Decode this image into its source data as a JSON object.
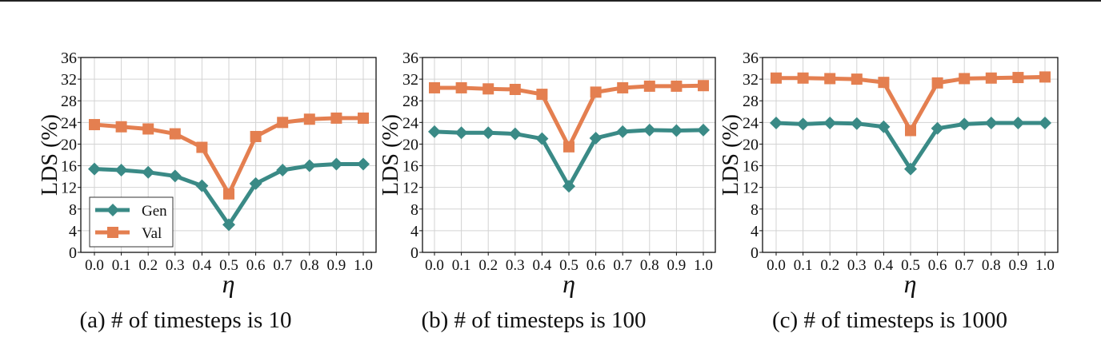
{
  "figure": {
    "captions": [
      "(a) # of timesteps is 10",
      "(b) # of timesteps is 100",
      "(c) # of timesteps is 1000"
    ]
  },
  "colors": {
    "gen": "#3a8a86",
    "val": "#e47f50",
    "grid": "#d3d3d3",
    "axis": "#111111"
  },
  "chart_data": [
    {
      "type": "line",
      "title": "(a) # of timesteps is 10",
      "xlabel": "η",
      "ylabel": "LDS (%)",
      "x": [
        0.0,
        0.1,
        0.2,
        0.3,
        0.4,
        0.5,
        0.6,
        0.7,
        0.8,
        0.9,
        1.0
      ],
      "x_tick_labels": [
        "0.0",
        "0.1",
        "0.2",
        "0.3",
        "0.4",
        "0.5",
        "0.6",
        "0.7",
        "0.8",
        "0.9",
        "1.0"
      ],
      "y_ticks": [
        0,
        4,
        8,
        12,
        16,
        20,
        24,
        28,
        32,
        36
      ],
      "ylim": [
        0,
        36
      ],
      "grid": true,
      "legend_position": "lower left",
      "series": [
        {
          "name": "Gen",
          "marker": "diamond",
          "values": [
            15.4,
            15.2,
            14.8,
            14.1,
            12.3,
            5.1,
            12.7,
            15.2,
            16.0,
            16.3,
            16.3
          ]
        },
        {
          "name": "Val",
          "marker": "square",
          "values": [
            23.6,
            23.2,
            22.8,
            21.9,
            19.4,
            10.8,
            21.4,
            24.0,
            24.6,
            24.8,
            24.8
          ]
        }
      ]
    },
    {
      "type": "line",
      "title": "(b) # of timesteps is 100",
      "xlabel": "η",
      "ylabel": "LDS (%)",
      "x": [
        0.0,
        0.1,
        0.2,
        0.3,
        0.4,
        0.5,
        0.6,
        0.7,
        0.8,
        0.9,
        1.0
      ],
      "x_tick_labels": [
        "0.0",
        "0.1",
        "0.2",
        "0.3",
        "0.4",
        "0.5",
        "0.6",
        "0.7",
        "0.8",
        "0.9",
        "1.0"
      ],
      "y_ticks": [
        0,
        4,
        8,
        12,
        16,
        20,
        24,
        28,
        32,
        36
      ],
      "ylim": [
        0,
        36
      ],
      "grid": true,
      "series": [
        {
          "name": "Gen",
          "marker": "diamond",
          "values": [
            22.3,
            22.1,
            22.1,
            21.9,
            21.0,
            12.2,
            21.1,
            22.3,
            22.6,
            22.5,
            22.6
          ]
        },
        {
          "name": "Val",
          "marker": "square",
          "values": [
            30.4,
            30.4,
            30.2,
            30.1,
            29.2,
            19.5,
            29.6,
            30.4,
            30.7,
            30.7,
            30.8
          ]
        }
      ]
    },
    {
      "type": "line",
      "title": "(c) # of timesteps is 1000",
      "xlabel": "η",
      "ylabel": "LDS (%)",
      "x": [
        0.0,
        0.1,
        0.2,
        0.3,
        0.4,
        0.5,
        0.6,
        0.7,
        0.8,
        0.9,
        1.0
      ],
      "x_tick_labels": [
        "0.0",
        "0.1",
        "0.2",
        "0.3",
        "0.4",
        "0.5",
        "0.6",
        "0.7",
        "0.8",
        "0.9",
        "1.0"
      ],
      "y_ticks": [
        0,
        4,
        8,
        12,
        16,
        20,
        24,
        28,
        32,
        36
      ],
      "ylim": [
        0,
        36
      ],
      "grid": true,
      "series": [
        {
          "name": "Gen",
          "marker": "diamond",
          "values": [
            23.9,
            23.7,
            23.9,
            23.8,
            23.2,
            15.4,
            22.9,
            23.7,
            23.9,
            23.9,
            23.9
          ]
        },
        {
          "name": "Val",
          "marker": "square",
          "values": [
            32.2,
            32.2,
            32.1,
            32.0,
            31.4,
            22.5,
            31.3,
            32.1,
            32.2,
            32.3,
            32.4
          ]
        }
      ]
    }
  ]
}
